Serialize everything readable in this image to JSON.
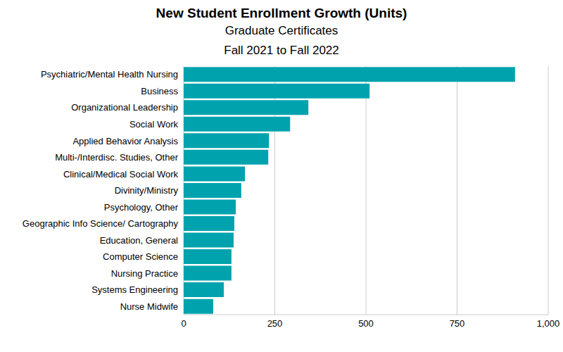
{
  "chart_data": {
    "type": "bar",
    "orientation": "horizontal",
    "title": "New Student Enrollment Growth (Units)",
    "subtitle": [
      "Graduate Certificates",
      "Fall 2021 to Fall 2022"
    ],
    "categories": [
      "Psychiatric/Mental Health Nursing",
      "Business",
      "Organizational Leadership",
      "Social Work",
      "Applied Behavior Analysis",
      "Multi-/Interdisc. Studies, Other",
      "Clinical/Medical Social Work",
      "Divinity/Ministry",
      "Psychology, Other",
      "Geographic Info Science/ Cartography",
      "Education, General",
      "Computer Science",
      "Nursing Practice",
      "Systems Engineering",
      "Nurse Midwife"
    ],
    "values": [
      909,
      510,
      342,
      292,
      234,
      232,
      168,
      158,
      143,
      139,
      137,
      131,
      131,
      110,
      81
    ],
    "color": "#00a3ad",
    "xlim": [
      0,
      1000
    ],
    "xticks": [
      0,
      250,
      500,
      750,
      {
        "value": 1000,
        "label": "1,000"
      }
    ],
    "grid": true
  }
}
